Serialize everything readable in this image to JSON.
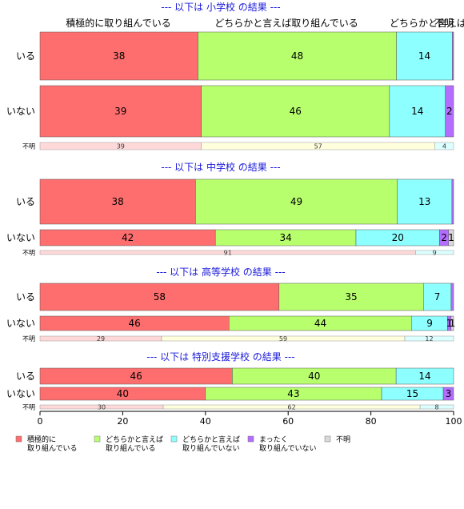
{
  "chart_data": {
    "type": "bar",
    "orientation": "horizontal",
    "stacked": true,
    "xlim": [
      0,
      100
    ],
    "x_ticks": [
      "0",
      "20",
      "40",
      "60",
      "80",
      "100"
    ],
    "colors": {
      "積極的に取り組んでいる": "#ff6e6e",
      "どちらかと言えば取り組んでいる": "#b8ff6e",
      "どちらかと言えば取り組んでいない": "#8effff",
      "まったく取り組んでいない": "#b46eff",
      "不明": "#d9d9d9"
    },
    "top_category_labels": [
      "積極的に取り組んでいる",
      "どちらかと言えば取り組んでいる",
      "どちらかと言えば",
      "不明"
    ],
    "legend": [
      {
        "line1": "積極的に",
        "line2": "取り組んでいる",
        "color": "#ff6e6e"
      },
      {
        "line1": "どちらかと言えば",
        "line2": "取り組んでいる",
        "color": "#b8ff6e"
      },
      {
        "line1": "どちらかと言えば",
        "line2": "取り組んでいない",
        "color": "#8effff"
      },
      {
        "line1": "まったく",
        "line2": "取り組んでいない",
        "color": "#b46eff"
      },
      {
        "line1": "不明",
        "line2": "",
        "color": "#d9d9d9"
      }
    ],
    "sections": [
      {
        "title": "--- 以下は 小学校 の結果 ---",
        "rows": [
          {
            "label": "いる",
            "values": [
              38.2,
              48.0,
              13.5,
              0.3,
              0.0
            ],
            "labels": [
              "38",
              "48",
              "14",
              "",
              ""
            ]
          },
          {
            "label": "いない",
            "values": [
              39.0,
              45.5,
              13.5,
              2.0,
              0.0
            ],
            "labels": [
              "39",
              "46",
              "14",
              "2",
              ""
            ]
          },
          {
            "label": "不明",
            "small": true,
            "values": [
              39.0,
              56.5,
              4.5,
              0.0,
              0.0
            ],
            "labels": [
              "39",
              "57",
              "4",
              "",
              ""
            ]
          }
        ]
      },
      {
        "title": "--- 以下は 中学校 の結果 ---",
        "rows": [
          {
            "label": "いる",
            "values": [
              37.6,
              48.8,
              13.2,
              0.4,
              0.0
            ],
            "labels": [
              "38",
              "49",
              "13",
              "",
              ""
            ]
          },
          {
            "label": "いない",
            "values": [
              42.4,
              34.0,
              20.2,
              2.2,
              1.2
            ],
            "labels": [
              "42",
              "34",
              "20",
              "2",
              "1"
            ]
          },
          {
            "label": "不明",
            "small": true,
            "values": [
              90.8,
              0.0,
              9.2,
              0.0,
              0.0
            ],
            "labels": [
              "91",
              "",
              "9",
              "",
              ""
            ]
          }
        ]
      },
      {
        "title": "--- 以下は 高等学校 の結果 ---",
        "rows": [
          {
            "label": "いる",
            "values": [
              57.8,
              34.9,
              6.7,
              0.6,
              0.0
            ],
            "labels": [
              "58",
              "35",
              "7",
              "",
              ""
            ]
          },
          {
            "label": "いない",
            "values": [
              45.7,
              44.2,
              8.6,
              0.9,
              0.6
            ],
            "labels": [
              "46",
              "44",
              "9",
              "1",
              "1"
            ]
          },
          {
            "label": "不明",
            "small": true,
            "values": [
              29.4,
              58.8,
              11.8,
              0.0,
              0.0
            ],
            "labels": [
              "29",
              "59",
              "12",
              "",
              ""
            ]
          }
        ]
      },
      {
        "title": "--- 以下は 特別支援学校 の結果 ---",
        "rows": [
          {
            "label": "いる",
            "values": [
              46.5,
              39.6,
              13.9,
              0.0,
              0.0
            ],
            "labels": [
              "46",
              "40",
              "14",
              "",
              ""
            ]
          },
          {
            "label": "いない",
            "values": [
              40.0,
              42.6,
              14.9,
              2.5,
              0.0
            ],
            "labels": [
              "40",
              "43",
              "15",
              "3",
              ""
            ]
          },
          {
            "label": "不明",
            "small": true,
            "values": [
              29.8,
              62.1,
              8.1,
              0.0,
              0.0
            ],
            "labels": [
              "30",
              "62",
              "8",
              "",
              ""
            ]
          }
        ]
      }
    ]
  }
}
